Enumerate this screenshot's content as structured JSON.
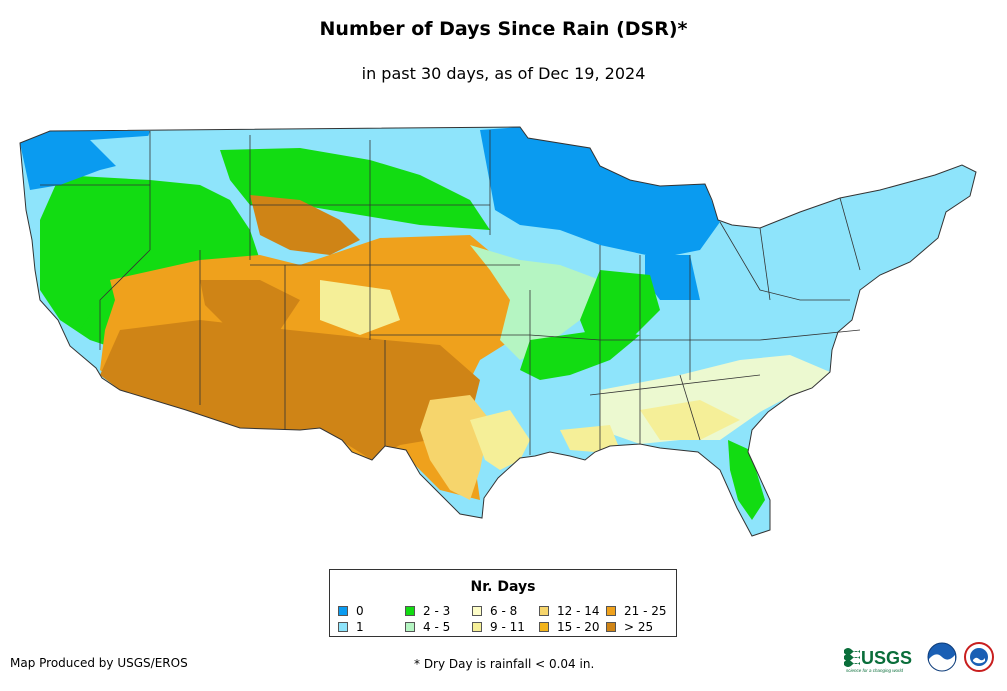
{
  "title": "Number of Days Since Rain (DSR)*",
  "subtitle": "in past 30 days, as of Dec 19, 2024",
  "legend": {
    "title": "Nr. Days",
    "items": [
      {
        "label": "0",
        "color": "#0a9bf0"
      },
      {
        "label": "1",
        "color": "#8ee4fb"
      },
      {
        "label": "2 - 3",
        "color": "#12dc12"
      },
      {
        "label": "4 - 5",
        "color": "#b5f5c2"
      },
      {
        "label": "6 - 8",
        "color": "#fdfdc8"
      },
      {
        "label": "9 - 11",
        "color": "#f5ef98"
      },
      {
        "label": "12 - 14",
        "color": "#f6d56c"
      },
      {
        "label": "15 - 20",
        "color": "#f2b41c"
      },
      {
        "label": "21 - 25",
        "color": "#efa11c"
      },
      {
        "label": "> 25",
        "color": "#cf8416"
      }
    ]
  },
  "credit": "Map Produced by USGS/EROS",
  "footnote": "* Dry Day is rainfall < 0.04 in.",
  "logos": {
    "usgs_text": "USGS",
    "usgs_tagline": "science for a changing world"
  }
}
